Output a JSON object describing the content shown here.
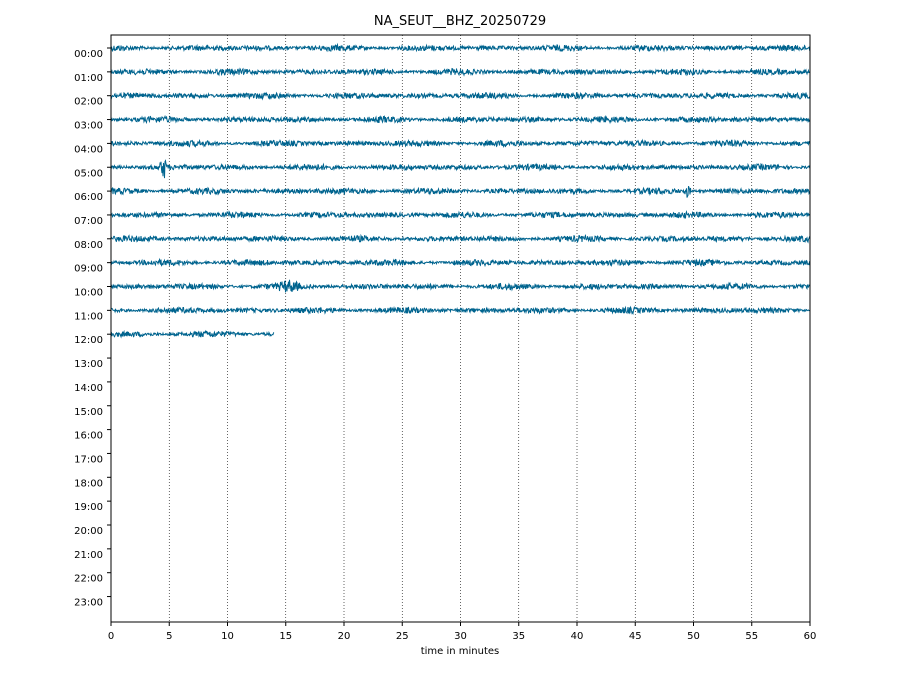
{
  "chart_data": {
    "type": "line",
    "title": "NA_SEUT__BHZ_20250729",
    "xlabel": "time in minutes",
    "ylabel": "",
    "xlim": [
      0,
      60
    ],
    "x_ticks": [
      0,
      5,
      10,
      15,
      20,
      25,
      30,
      35,
      40,
      45,
      50,
      55,
      60
    ],
    "x_tick_labels": [
      "0",
      "5",
      "10",
      "15",
      "20",
      "25",
      "30",
      "35",
      "40",
      "45",
      "50",
      "55",
      "60"
    ],
    "y_tick_labels": [
      "00:00",
      "01:00",
      "02:00",
      "03:00",
      "04:00",
      "05:00",
      "06:00",
      "07:00",
      "08:00",
      "09:00",
      "10:00",
      "11:00",
      "12:00",
      "13:00",
      "14:00",
      "15:00",
      "16:00",
      "17:00",
      "18:00",
      "19:00",
      "20:00",
      "21:00",
      "22:00",
      "23:00"
    ],
    "grid": "vertical dotted lines at x ticks",
    "trace_color": "#00648f",
    "series": [
      {
        "hour": "00:00",
        "start_min": 0,
        "end_min": 60
      },
      {
        "hour": "01:00",
        "start_min": 0,
        "end_min": 60
      },
      {
        "hour": "02:00",
        "start_min": 0,
        "end_min": 60
      },
      {
        "hour": "03:00",
        "start_min": 0,
        "end_min": 60
      },
      {
        "hour": "04:00",
        "start_min": 0,
        "end_min": 60
      },
      {
        "hour": "05:00",
        "start_min": 0,
        "end_min": 60
      },
      {
        "hour": "06:00",
        "start_min": 0,
        "end_min": 60
      },
      {
        "hour": "07:00",
        "start_min": 0,
        "end_min": 60
      },
      {
        "hour": "08:00",
        "start_min": 0,
        "end_min": 60
      },
      {
        "hour": "09:00",
        "start_min": 0,
        "end_min": 60
      },
      {
        "hour": "10:00",
        "start_min": 0,
        "end_min": 60
      },
      {
        "hour": "11:00",
        "start_min": 0,
        "end_min": 60
      },
      {
        "hour": "12:00",
        "start_min": 0,
        "end_min": 14
      }
    ],
    "events": [
      {
        "hour": "05:00",
        "minute": 4.5,
        "note": "spike"
      },
      {
        "hour": "06:00",
        "minute": 49.5,
        "note": "spike"
      },
      {
        "hour": "10:00",
        "minute": 15.3,
        "note": "burst"
      }
    ]
  }
}
